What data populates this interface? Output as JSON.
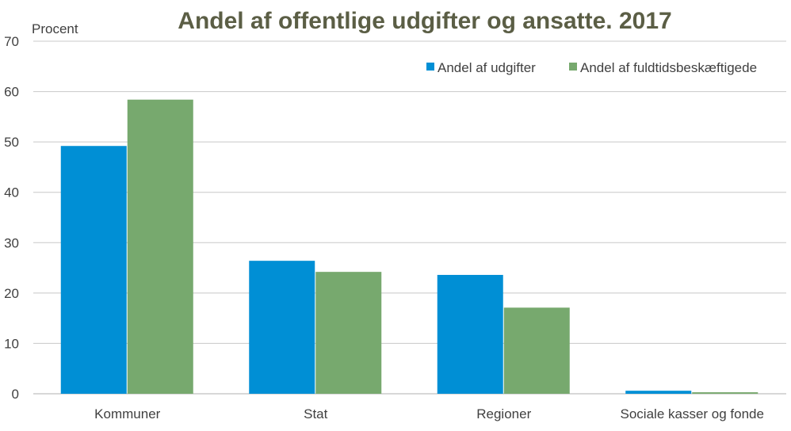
{
  "chart_data": {
    "type": "bar",
    "title": "Andel af offentlige udgifter og ansatte. 2017",
    "ylabel": "Procent",
    "xlabel": "",
    "ylim": [
      0,
      70
    ],
    "yticks": [
      0,
      10,
      20,
      30,
      40,
      50,
      60,
      70
    ],
    "grid": true,
    "legend_position": "top-right",
    "categories": [
      "Kommuner",
      "Stat",
      "Regioner",
      "Sociale kasser og fonde"
    ],
    "series": [
      {
        "name": "Andel af udgifter",
        "color": "#008fd5",
        "values": [
          49.2,
          26.4,
          23.6,
          0.6
        ]
      },
      {
        "name": "Andel af fuldtidsbeskæftigede",
        "color": "#77a96e",
        "values": [
          58.4,
          24.2,
          17.1,
          0.3
        ]
      }
    ]
  }
}
